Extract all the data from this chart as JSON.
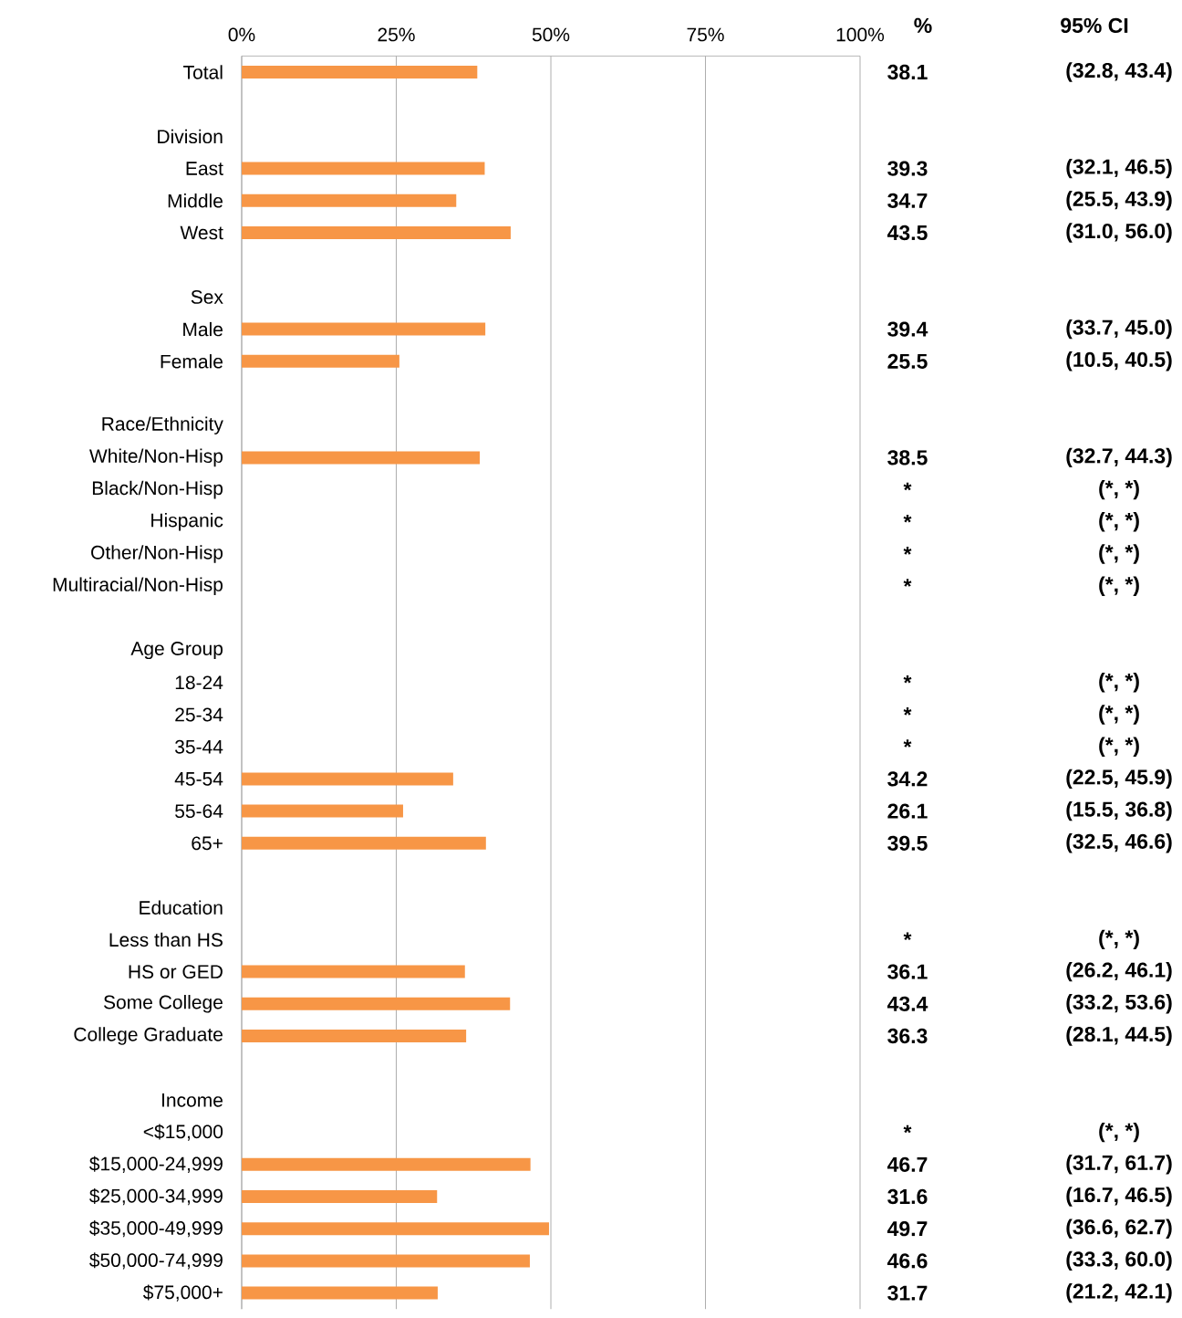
{
  "chart_data": {
    "type": "bar",
    "orientation": "horizontal",
    "categories": [
      "Total",
      null,
      "Division",
      "East",
      "Middle",
      "West",
      null,
      "Sex",
      "Male",
      "Female",
      null,
      "Race/Ethnicity",
      "White/Non-Hisp",
      "Black/Non-Hisp",
      "Hispanic",
      "Other/Non-Hisp",
      "Multiracial/Non-Hisp",
      null,
      "Age Group",
      "18-24",
      "25-34",
      "35-44",
      "45-54",
      "55-64",
      "65+",
      null,
      "Education",
      "Less than HS",
      "HS or GED",
      "Some College",
      "College Graduate",
      null,
      "Income",
      "<$15,000",
      "$15,000-24,999",
      "$25,000-34,999",
      "$35,000-49,999",
      "$50,000-74,999",
      "$75,000+"
    ],
    "values": [
      38.1,
      null,
      null,
      39.3,
      34.7,
      43.5,
      null,
      null,
      39.4,
      25.5,
      null,
      null,
      38.5,
      null,
      null,
      null,
      null,
      null,
      null,
      null,
      null,
      null,
      34.2,
      26.1,
      39.5,
      null,
      null,
      null,
      36.1,
      43.4,
      36.3,
      null,
      null,
      null,
      46.7,
      31.6,
      49.7,
      46.6,
      31.7
    ],
    "value_labels": [
      "38.1",
      null,
      null,
      "39.3",
      "34.7",
      "43.5",
      null,
      null,
      "39.4",
      "25.5",
      null,
      null,
      "38.5",
      "*",
      "*",
      "*",
      "*",
      null,
      null,
      "*",
      "*",
      "*",
      "34.2",
      "26.1",
      "39.5",
      null,
      null,
      "*",
      "36.1",
      "43.4",
      "36.3",
      null,
      null,
      "*",
      "46.7",
      "31.6",
      "49.7",
      "46.6",
      "31.7"
    ],
    "color": "#f79646",
    "xlim": [
      0,
      100
    ],
    "xticks": [
      {
        "value": 0,
        "label": "0%"
      },
      {
        "value": 25,
        "label": "25%"
      },
      {
        "value": 50,
        "label": "50%"
      },
      {
        "value": 75,
        "label": "75%"
      },
      {
        "value": 100,
        "label": "100%"
      }
    ],
    "grid": "x",
    "annotations": [
      "%",
      "95% CI",
      "(32.8, 43.4)",
      "(32.1, 46.5)",
      "(25.5, 43.9)",
      "(31.0, 56.0)",
      "(33.7, 45.0)",
      "(10.5, 40.5)",
      "(32.7, 44.3)",
      "(*, *)",
      "(*, *)",
      "(*, *)",
      "(*, *)",
      "(*, *)",
      "(*, *)",
      "(*, *)",
      "(22.5, 45.9)",
      "(15.5, 36.8)",
      "(32.5, 46.6)",
      "(*, *)",
      "(26.2, 46.1)",
      "(33.2, 53.6)",
      "(28.1, 44.5)",
      "(*, *)",
      "(31.7, 61.7)",
      "(16.7, 46.5)",
      "(36.6, 62.7)",
      "(33.3, 60.0)",
      "(21.2, 42.1)"
    ]
  }
}
